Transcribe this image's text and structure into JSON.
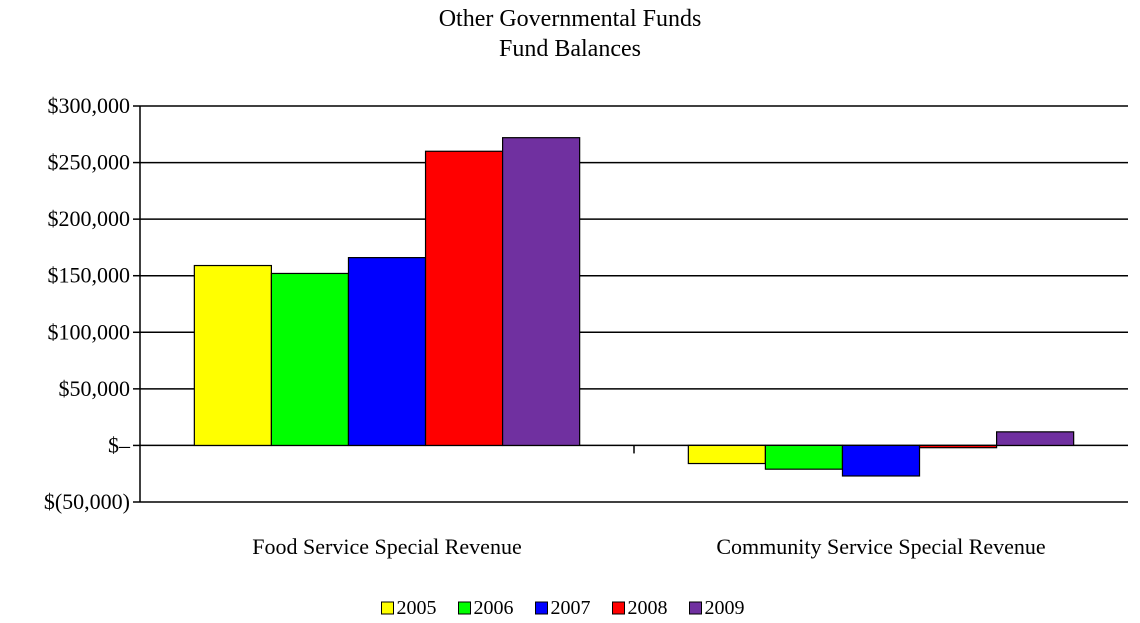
{
  "chart_data": {
    "type": "bar",
    "title": "Other Governmental Funds",
    "subtitle": "Fund Balances",
    "categories": [
      "Food Service Special Revenue",
      "Community Service Special Revenue"
    ],
    "series": [
      {
        "name": "2005",
        "color": "#ffff00",
        "values": [
          159000,
          -16000
        ]
      },
      {
        "name": "2006",
        "color": "#00ff00",
        "values": [
          152000,
          -21000
        ]
      },
      {
        "name": "2007",
        "color": "#0000ff",
        "values": [
          166000,
          -27000
        ]
      },
      {
        "name": "2008",
        "color": "#ff0000",
        "values": [
          260000,
          -2000
        ]
      },
      {
        "name": "2009",
        "color": "#7030a0",
        "values": [
          272000,
          12000
        ]
      }
    ],
    "ylim": [
      -50000,
      300000
    ],
    "yticks": [
      300000,
      250000,
      200000,
      150000,
      100000,
      50000,
      0,
      -50000
    ],
    "ytick_labels": [
      "$300,000",
      "$250,000",
      "$200,000",
      "$150,000",
      "$100,000",
      "$50,000",
      "$–",
      "$(50,000)"
    ],
    "grid": true,
    "legend_position": "bottom"
  }
}
